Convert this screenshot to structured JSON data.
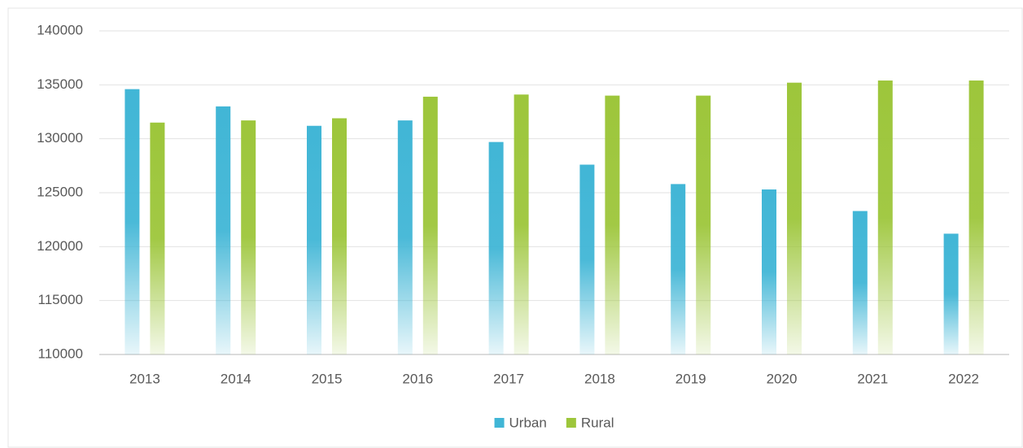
{
  "chart_data": {
    "type": "bar",
    "categories": [
      "2013",
      "2014",
      "2015",
      "2016",
      "2017",
      "2018",
      "2019",
      "2020",
      "2021",
      "2022"
    ],
    "series": [
      {
        "name": "Urban",
        "color": "#41b6d6",
        "values": [
          134600,
          133000,
          131200,
          131700,
          129700,
          127600,
          125800,
          125300,
          123300,
          121200
        ]
      },
      {
        "name": "Rural",
        "color": "#9dc63b",
        "values": [
          131500,
          131700,
          131900,
          133900,
          134100,
          134000,
          134000,
          135200,
          135400,
          135400
        ]
      }
    ],
    "ylim": [
      110000,
      140000
    ],
    "yticks": [
      110000,
      115000,
      120000,
      125000,
      130000,
      135000,
      140000
    ],
    "grid": true,
    "legend": "bottom"
  }
}
